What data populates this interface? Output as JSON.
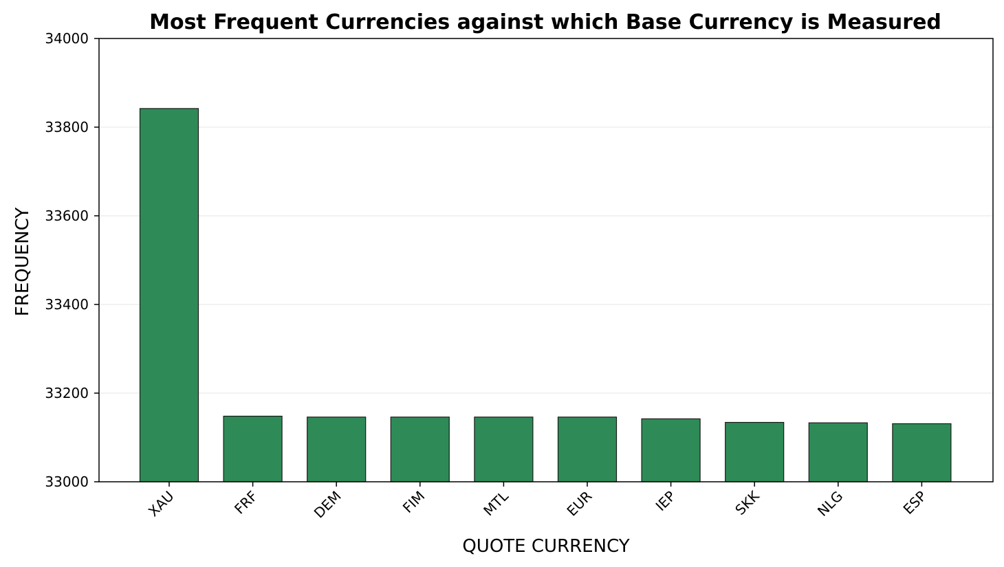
{
  "chart_data": {
    "type": "bar",
    "title": "Most Frequent Currencies against which Base Currency is Measured",
    "xlabel": "QUOTE CURRENCY",
    "ylabel": "FREQUENCY",
    "categories": [
      "XAU",
      "FRF",
      "DEM",
      "FIM",
      "MTL",
      "EUR",
      "IEP",
      "SKK",
      "NLG",
      "ESP"
    ],
    "values": [
      33842,
      33148,
      33146,
      33146,
      33146,
      33146,
      33142,
      33134,
      33133,
      33131
    ],
    "ylim": [
      33000,
      34000
    ],
    "yticks": [
      33000,
      33200,
      33400,
      33600,
      33800,
      34000
    ],
    "grid": "horizontal",
    "bar_color": "#2e8b57",
    "bar_edge_color": "#1a1a1a"
  }
}
